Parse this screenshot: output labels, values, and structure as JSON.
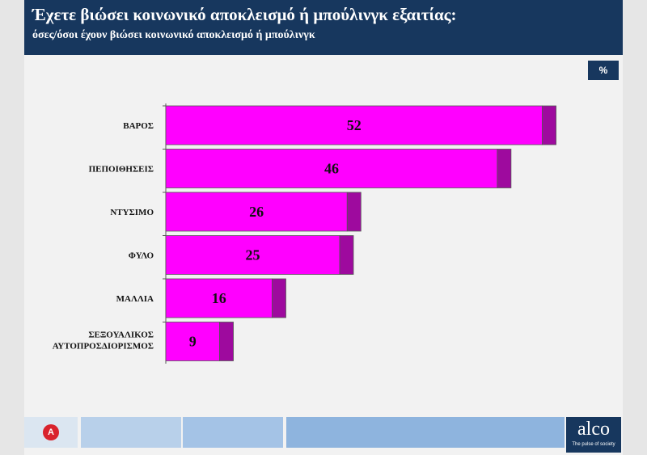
{
  "header": {
    "title": "Έχετε βιώσει κοινωνικό αποκλεισμό ή μπούλινγκ εξαιτίας:",
    "subtitle": "όσες/όσοι έχουν βιώσει κοινωνικό αποκλεισμό ή μπούλινγκ"
  },
  "unit": "%",
  "chart_data": {
    "type": "bar",
    "orientation": "horizontal",
    "categories": [
      "ΒΑΡΟΣ",
      "ΠΕΠΟΙΘΗΣΕΙΣ",
      "ΝΤΥΣΙΜΟ",
      "ΦΥΛΟ",
      "ΜΑΛΛΙΑ",
      "ΣΕΞΟΥΑΛΙΚΟΣ ΑΥΤΟΠΡΟΣΔΙΟΡΙΣΜΟΣ"
    ],
    "values": [
      52,
      46,
      26,
      25,
      16,
      9
    ],
    "xlim": [
      0,
      55
    ],
    "grid": false,
    "colors": {
      "bar_face": "#ff00ff",
      "bar_side": "#9e0a9e"
    }
  },
  "footer": {
    "brand": "alco",
    "tagline": "The pulse of society",
    "colors": [
      "#dbe6f1",
      "#b8d0ea",
      "#a4c3e6",
      "#8eb4de"
    ]
  },
  "icons": {
    "channel_logo": "alpha-news-logo-icon"
  }
}
